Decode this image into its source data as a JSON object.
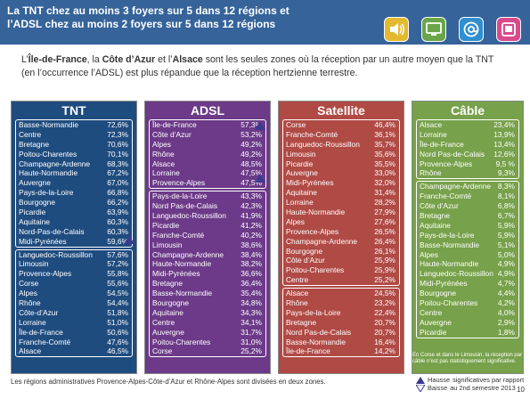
{
  "header": {
    "title_line1": "La TNT chez au moins 3 foyers sur 5 dans 12 régions et",
    "title_line2": "l’ADSL chez au moins 2 foyers sur 5 dans 12 régions",
    "icons": [
      "speaker-icon",
      "monitor-icon",
      "at-icon",
      "tablet-icon"
    ]
  },
  "intro": {
    "pre": "L’",
    "b1": "Île-de-France",
    "mid1": ", la ",
    "b2": "Côte d’Azur",
    "mid2": " et l’",
    "b3": "Alsace",
    "post": " sont les seules zones où la réception par un autre moyen que la TNT (en l’occurrence l’ADSL) est plus répandue que la réception hertzienne terrestre."
  },
  "panels": {
    "tnt": {
      "title": "TNT",
      "groups": [
        [
          [
            "Basse-Normandie",
            "72,6%"
          ],
          [
            "Centre",
            "72,3%"
          ],
          [
            "Bretagne",
            "70,6%"
          ],
          [
            "Poitou-Charentes",
            "70,1%"
          ],
          [
            "Champagne-Ardenne",
            "68,3%"
          ],
          [
            "Haute-Normandie",
            "67,2%"
          ],
          [
            "Auvergne",
            "67,0%"
          ],
          [
            "Pays-de-la-Loire",
            "66,8%"
          ],
          [
            "Bourgogne",
            "66,2%"
          ],
          [
            "Picardie",
            "63,9%"
          ],
          [
            "Aquitaine",
            "60,3%"
          ],
          [
            "Nord-Pas-de-Calais",
            "60,3%"
          ],
          [
            "Midi-Pyrénées",
            "59,6%"
          ]
        ],
        [
          [
            "Languedoc-Roussillon",
            "57,6%"
          ],
          [
            "Limousin",
            "57,2%"
          ],
          [
            "Provence-Alpes",
            "55,8%"
          ],
          [
            "Corse",
            "55,6%"
          ],
          [
            "Alpes",
            "54,5%"
          ],
          [
            "Rhône",
            "54,4%"
          ],
          [
            "Côte-d’Azur",
            "51,8%"
          ],
          [
            "Lorraine",
            "51,0%"
          ],
          [
            "Île-de-France",
            "50,6%"
          ],
          [
            "Franche-Comté",
            "47,6%"
          ],
          [
            "Alsace",
            "46,5%"
          ]
        ]
      ]
    },
    "adsl": {
      "title": "ADSL",
      "groups": [
        [
          [
            "Île-de-France",
            "57,3%"
          ],
          [
            "Côte d’Azur",
            "53,2%"
          ],
          [
            "Alpes",
            "49,2%"
          ],
          [
            "Rhône",
            "49,2%"
          ],
          [
            "Alsace",
            "48,5%"
          ],
          [
            "Lorraine",
            "47,5%"
          ],
          [
            "Provence-Alpes",
            "47,5%"
          ]
        ],
        [
          [
            "Pays-de-la-Loire",
            "43,3%"
          ],
          [
            "Nord Pas-de-Calais",
            "42,3%"
          ],
          [
            "Languedoc-Roussillon",
            "41,9%"
          ],
          [
            "Picardie",
            "41,2%"
          ],
          [
            "Franche-Comté",
            "40,2%"
          ],
          [
            "Limousin",
            "38,6%"
          ],
          [
            "Champagne-Ardenne",
            "38,4%"
          ],
          [
            "Haute-Normandie",
            "38,2%"
          ],
          [
            "Midi-Pyrénées",
            "36,6%"
          ],
          [
            "Bretagne",
            "36,4%"
          ],
          [
            "Basse-Normandie",
            "35,4%"
          ],
          [
            "Bourgogne",
            "34,8%"
          ],
          [
            "Aquitaine",
            "34,3%"
          ],
          [
            "Centre",
            "34,1%"
          ],
          [
            "Auvergne",
            "31,7%"
          ],
          [
            "Poitou-Charentes",
            "31,0%"
          ],
          [
            "Corse",
            "25,2%"
          ]
        ]
      ]
    },
    "satellite": {
      "title": "Satellite",
      "groups": [
        [
          [
            "Corse",
            "46,4%"
          ],
          [
            "Franche-Comté",
            "36,1%"
          ],
          [
            "Languedoc-Roussillon",
            "35,7%"
          ],
          [
            "Limousin",
            "35,6%"
          ],
          [
            "Picardie",
            "35,5%"
          ],
          [
            "Auvergne",
            "33,0%"
          ],
          [
            "Midi-Pyrénées",
            "32,0%"
          ],
          [
            "Aquitaine",
            "31,4%"
          ],
          [
            "Lorraine",
            "28,2%"
          ],
          [
            "Haute-Normandie",
            "27,9%"
          ],
          [
            "Alpes",
            "27,6%"
          ],
          [
            "Provence-Alpes",
            "26,5%"
          ],
          [
            "Champagne-Ardenne",
            "26,4%"
          ],
          [
            "Bourgogne",
            "26,1%"
          ],
          [
            "Côte d’Azur",
            "25,9%"
          ],
          [
            "Poitou-Charentes",
            "25,9%"
          ],
          [
            "Centre",
            "25,2%"
          ]
        ],
        [
          [
            "Alsace",
            "24,5%"
          ],
          [
            "Rhône",
            "23,2%"
          ],
          [
            "Pays-de-la-Loire",
            "22,4%"
          ],
          [
            "Bretagne",
            "20,7%"
          ],
          [
            "Nord Pas-de-Calais",
            "20,7%"
          ],
          [
            "Basse-Normandie",
            "16,4%"
          ],
          [
            "Île-de-France",
            "14,2%"
          ]
        ]
      ]
    },
    "cable": {
      "title": "Câble",
      "groups": [
        [
          [
            "Alsace",
            "23,4%"
          ],
          [
            "Lorraine",
            "13,9%"
          ],
          [
            "Île-de-France",
            "13,4%"
          ],
          [
            "Nord Pas-de-Calais",
            "12,6%"
          ],
          [
            "Provence-Alpes",
            "9,5 %"
          ],
          [
            "Rhône",
            "9,3%"
          ]
        ],
        [
          [
            "Champagne-Ardenne",
            "8,3%"
          ],
          [
            "Franche-Comté",
            "8,1%"
          ],
          [
            "Côte d’Azur",
            "6,8%"
          ],
          [
            "Bretagne",
            "6,7%"
          ],
          [
            "Aquitaine",
            "5,9%"
          ],
          [
            "Pays-de-la-Loire",
            "5,9%"
          ],
          [
            "Basse-Normandie",
            "5,1%"
          ],
          [
            "Alpes",
            "5,0%"
          ],
          [
            "Haute-Normandie",
            "4,9%"
          ],
          [
            "Languedoc-Roussillon",
            "4,9%"
          ],
          [
            "Midi-Pyrénées",
            "4,7%"
          ],
          [
            "Bourgogne",
            "4,4%"
          ],
          [
            "Poitou-Charentes",
            "4,2%"
          ],
          [
            "Centre",
            "4,0%"
          ],
          [
            "Auvergne",
            "2,9%"
          ],
          [
            "Picardie",
            "1,8%"
          ]
        ]
      ]
    }
  },
  "note": "En Corse et dans le Limousin, la réception par câble n’est pas statistiquement significative.",
  "footnote": "Les régions administratives Provence-Alpes-Côte-d’Azur et Rhône-Alpes sont divisées en deux zones.",
  "legend": {
    "up": "Hausse",
    "down": "Baisse",
    "text1": "significatives par rapport",
    "text2": "au 2nd semestre 2013"
  },
  "page_number": "10",
  "colors": {
    "header": "#35639a",
    "tnt": "#1f4c7f",
    "adsl": "#6c3a88",
    "satellite": "#b04a45",
    "cable": "#77a14a",
    "icon_yellow": "#e3b930",
    "icon_green": "#6aa54a",
    "icon_blue": "#2f8fd0",
    "icon_pink": "#d94a8c"
  }
}
